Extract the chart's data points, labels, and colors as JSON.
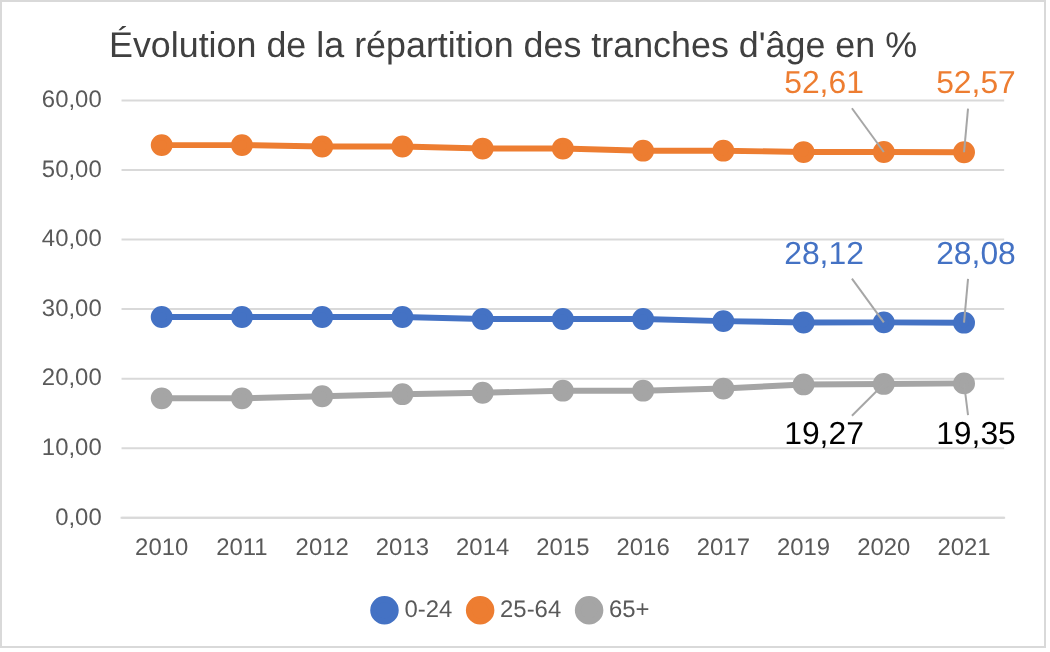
{
  "chart_data": {
    "type": "line",
    "title": "Évolution de la répartition des tranches d'âge en %",
    "categories": [
      "2010",
      "2011",
      "2012",
      "2013",
      "2014",
      "2015",
      "2016",
      "2017",
      "2019",
      "2020",
      "2021"
    ],
    "series": [
      {
        "name": "0-24",
        "color": "#4472c4",
        "values": [
          28.9,
          28.9,
          28.9,
          28.9,
          28.6,
          28.6,
          28.6,
          28.3,
          28.1,
          28.12,
          28.08
        ],
        "value_labels": [
          null,
          null,
          null,
          null,
          null,
          null,
          null,
          null,
          null,
          "28,12",
          "28,08"
        ]
      },
      {
        "name": "25-64",
        "color": "#ed7d31",
        "values": [
          53.6,
          53.6,
          53.4,
          53.4,
          53.1,
          53.1,
          52.8,
          52.8,
          52.6,
          52.61,
          52.57
        ],
        "value_labels": [
          null,
          null,
          null,
          null,
          null,
          null,
          null,
          null,
          null,
          "52,61",
          "52,57"
        ]
      },
      {
        "name": "65+",
        "color": "#a5a5a5",
        "values": [
          17.2,
          17.2,
          17.5,
          17.8,
          18.0,
          18.3,
          18.3,
          18.6,
          19.2,
          19.27,
          19.35
        ],
        "value_labels": [
          null,
          null,
          null,
          null,
          null,
          null,
          null,
          null,
          null,
          "19,27",
          "19,35"
        ]
      }
    ],
    "ylim": [
      0,
      60
    ],
    "yticks": [
      {
        "value": 0,
        "label": "0,00"
      },
      {
        "value": 10,
        "label": "10,00"
      },
      {
        "value": 20,
        "label": "20,00"
      },
      {
        "value": 30,
        "label": "30,00"
      },
      {
        "value": 40,
        "label": "40,00"
      },
      {
        "value": 50,
        "label": "50,00"
      },
      {
        "value": 60,
        "label": "60,00"
      }
    ],
    "grid": "y",
    "legend": "bottom",
    "marker": "circle",
    "line_style": "solid"
  }
}
